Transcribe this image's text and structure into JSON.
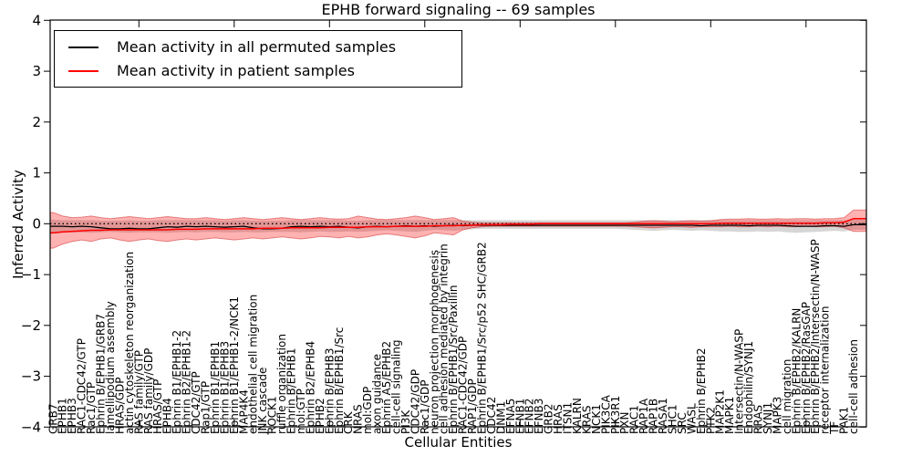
{
  "chart_data": {
    "type": "line",
    "title": "EPHB forward signaling -- 69 samples",
    "xlabel": "Cellular Entities",
    "ylabel": "Inferred Activity",
    "ylim": [
      -4,
      4
    ],
    "yticks": [
      -4,
      -3,
      -2,
      -1,
      0,
      1,
      2,
      3,
      4
    ],
    "xtick_indices": [
      9,
      19,
      29,
      39,
      49,
      59,
      69,
      79
    ],
    "grid": false,
    "legend_position": "upper left",
    "zero_line": {
      "y": 0,
      "style": "dotted",
      "color": "#000000"
    },
    "categories": [
      "GRB7",
      "EPHB1",
      "EPHB3",
      "RAC1-CDC42/GTP",
      "Rac1/GTP",
      "Ephrin B/EPHB1/GRB7",
      "lamellipodium assembly",
      "HRAS/GDP",
      "actin cytoskeleton reorganization",
      "RAS family/GTP",
      "RAS family/GDP",
      "HRAS/GTP",
      "EPHB4",
      "Ephrin B1/EPHB1-2",
      "Ephrin B2/EPHB1-2",
      "CDC42/GTP",
      "Rap1/GTP",
      "Ephrin B1/EPHB1",
      "Ephrin B1/EPHB3",
      "Ephrin B1/EPHB1-2/NCK1",
      "MAP4K4",
      "endothelial cell migration",
      "JNK cascade",
      "ROCK1",
      "ruffle organization",
      "Ephrin B/EPHB1",
      "mol:GTP",
      "Ephrin B2/EPHB4",
      "EPHB2",
      "Ephrin B/EPHB3",
      "Ephrin B/EPHB1/Src",
      "CRK",
      "NRAS",
      "mol:GDP",
      "axon guidance",
      "Ephrin A5/EPHB2",
      "cell-cell signaling",
      "PI3K",
      "CDC42/GDP",
      "Rac1/GDP",
      "neuron projection morphogenesis",
      "cell adhesion mediated by integrin",
      "Ephrin B/EPHB1/Src/Paxillin",
      "RAC1-CDC42/GDP",
      "RAP1/GDP",
      "Ephrin B/EPHB1/Src/p52 SHC/GRB2",
      "CDC42",
      "DNM1",
      "EFNA5",
      "EFNB1",
      "EFNB2",
      "EFNB3",
      "GRB2",
      "HRAS",
      "ITSN1",
      "KALRN",
      "KRAS",
      "NCK1",
      "PIK3CA",
      "PIK3R1",
      "PXN",
      "RAC1",
      "RAP1A",
      "RAP1B",
      "RASA1",
      "SHC1",
      "SRC",
      "WASL",
      "Ephrin B/EPHB2",
      "PTK2",
      "MAP2K1",
      "MAPK1",
      "Intersectin/N-WASP",
      "Endophilin/SYNJ1",
      "RRAS",
      "SYNJ1",
      "MAPK3",
      "cell migration",
      "Ephrin B/EPHB2/KALRN",
      "Ephrin B/EPHB2/RasGAP",
      "Ephrin B/EPHB2/Intersectin/N-WASP",
      "receptor internalization",
      "TF",
      "PAK1",
      "cell-cell adhesion"
    ],
    "series": [
      {
        "name": "Mean activity in all permuted samples",
        "color": "#000000",
        "band_color": "rgba(0,0,0,0.16)",
        "band_edge_color": "rgba(0,0,0,0.0)",
        "values": [
          -0.05,
          -0.05,
          -0.06,
          -0.05,
          -0.06,
          -0.08,
          -0.1,
          -0.1,
          -0.09,
          -0.1,
          -0.1,
          -0.08,
          -0.06,
          -0.07,
          -0.05,
          -0.06,
          -0.05,
          -0.06,
          -0.07,
          -0.06,
          -0.05,
          -0.08,
          -0.1,
          -0.1,
          -0.09,
          -0.06,
          -0.05,
          -0.06,
          -0.05,
          -0.06,
          -0.05,
          -0.07,
          -0.08,
          -0.06,
          -0.05,
          -0.06,
          -0.05,
          -0.04,
          -0.05,
          -0.04,
          -0.05,
          -0.04,
          -0.03,
          -0.04,
          -0.03,
          -0.03,
          -0.03,
          -0.03,
          -0.03,
          -0.03,
          -0.03,
          -0.03,
          -0.03,
          -0.03,
          -0.03,
          -0.03,
          -0.03,
          -0.03,
          -0.03,
          -0.03,
          -0.03,
          -0.03,
          -0.03,
          -0.03,
          -0.03,
          -0.03,
          -0.03,
          -0.03,
          -0.04,
          -0.03,
          -0.03,
          -0.03,
          -0.03,
          -0.04,
          -0.03,
          -0.03,
          -0.03,
          -0.04,
          -0.05,
          -0.05,
          -0.05,
          -0.04,
          -0.04,
          -0.05,
          -0.02
        ],
        "band_upper": [
          0.08,
          0.07,
          0.07,
          0.07,
          0.07,
          0.06,
          0.06,
          0.06,
          0.07,
          0.06,
          0.06,
          0.07,
          0.07,
          0.07,
          0.07,
          0.07,
          0.07,
          0.07,
          0.06,
          0.07,
          0.07,
          0.06,
          0.06,
          0.06,
          0.06,
          0.07,
          0.07,
          0.07,
          0.07,
          0.07,
          0.07,
          0.06,
          0.06,
          0.07,
          0.07,
          0.07,
          0.07,
          0.07,
          0.07,
          0.07,
          0.07,
          0.07,
          0.07,
          0.07,
          0.07,
          0.07,
          0.07,
          0.07,
          0.07,
          0.07,
          0.07,
          0.07,
          0.07,
          0.07,
          0.07,
          0.07,
          0.07,
          0.07,
          0.07,
          0.07,
          0.07,
          0.07,
          0.07,
          0.07,
          0.07,
          0.07,
          0.07,
          0.07,
          0.07,
          0.07,
          0.07,
          0.07,
          0.07,
          0.07,
          0.07,
          0.07,
          0.07,
          0.07,
          0.07,
          0.07,
          0.07,
          0.07,
          0.07,
          0.07,
          0.08
        ],
        "band_lower": [
          -0.2,
          -0.18,
          -0.17,
          -0.17,
          -0.18,
          -0.17,
          -0.16,
          -0.17,
          -0.18,
          -0.17,
          -0.17,
          -0.17,
          -0.18,
          -0.17,
          -0.16,
          -0.17,
          -0.16,
          -0.16,
          -0.17,
          -0.17,
          -0.16,
          -0.17,
          -0.17,
          -0.16,
          -0.16,
          -0.16,
          -0.17,
          -0.16,
          -0.15,
          -0.16,
          -0.16,
          -0.15,
          -0.16,
          -0.15,
          -0.14,
          -0.13,
          -0.14,
          -0.15,
          -0.16,
          -0.14,
          -0.12,
          -0.13,
          -0.14,
          -0.12,
          -0.11,
          -0.1,
          -0.1,
          -0.1,
          -0.1,
          -0.1,
          -0.1,
          -0.1,
          -0.1,
          -0.1,
          -0.1,
          -0.1,
          -0.1,
          -0.1,
          -0.1,
          -0.1,
          -0.11,
          -0.12,
          -0.13,
          -0.14,
          -0.13,
          -0.12,
          -0.13,
          -0.14,
          -0.13,
          -0.14,
          -0.15,
          -0.15,
          -0.16,
          -0.16,
          -0.15,
          -0.16,
          -0.15,
          -0.17,
          -0.18,
          -0.17,
          -0.16,
          -0.15,
          -0.14,
          -0.15,
          -0.12
        ]
      },
      {
        "name": "Mean activity in patient samples",
        "color": "#ff0000",
        "band_color": "rgba(255,0,0,0.30)",
        "band_edge_color": "rgba(205,35,35,0.5)",
        "values": [
          -0.18,
          -0.16,
          -0.15,
          -0.14,
          -0.13,
          -0.13,
          -0.12,
          -0.12,
          -0.12,
          -0.12,
          -0.12,
          -0.12,
          -0.12,
          -0.11,
          -0.11,
          -0.11,
          -0.1,
          -0.1,
          -0.1,
          -0.1,
          -0.1,
          -0.1,
          -0.09,
          -0.09,
          -0.09,
          -0.08,
          -0.08,
          -0.08,
          -0.08,
          -0.07,
          -0.07,
          -0.07,
          -0.07,
          -0.06,
          -0.06,
          -0.06,
          -0.05,
          -0.05,
          -0.05,
          -0.05,
          -0.04,
          -0.04,
          -0.04,
          -0.03,
          -0.03,
          -0.02,
          -0.02,
          -0.02,
          -0.01,
          -0.01,
          -0.01,
          0.0,
          0.0,
          0.0,
          0.0,
          0.0,
          0.0,
          0.0,
          0.0,
          0.0,
          0.0,
          0.0,
          0.0,
          0.0,
          0.0,
          0.0,
          0.0,
          0.0,
          0.0,
          0.0,
          0.01,
          0.01,
          0.01,
          0.01,
          0.01,
          0.01,
          0.01,
          0.01,
          0.01,
          0.01,
          0.01,
          0.02,
          0.02,
          0.03,
          0.1
        ],
        "band_upper": [
          0.22,
          0.15,
          0.12,
          0.13,
          0.15,
          0.12,
          0.1,
          0.12,
          0.14,
          0.12,
          0.1,
          0.12,
          0.14,
          0.12,
          0.1,
          0.1,
          0.12,
          0.1,
          0.08,
          0.1,
          0.12,
          0.1,
          0.08,
          0.1,
          0.12,
          0.1,
          0.08,
          0.1,
          0.12,
          0.1,
          0.09,
          0.1,
          0.15,
          0.12,
          0.09,
          0.08,
          0.1,
          0.12,
          0.15,
          0.12,
          0.08,
          0.1,
          0.12,
          0.05,
          0.03,
          0.02,
          0.02,
          0.02,
          0.02,
          0.02,
          0.02,
          0.02,
          0.02,
          0.02,
          0.02,
          0.02,
          0.02,
          0.02,
          0.02,
          0.02,
          0.02,
          0.03,
          0.05,
          0.06,
          0.05,
          0.04,
          0.05,
          0.06,
          0.05,
          0.06,
          0.08,
          0.09,
          0.09,
          0.1,
          0.09,
          0.09,
          0.1,
          0.09,
          0.1,
          0.1,
          0.09,
          0.1,
          0.1,
          0.12,
          0.27
        ],
        "band_lower": [
          -0.48,
          -0.4,
          -0.35,
          -0.32,
          -0.35,
          -0.3,
          -0.28,
          -0.32,
          -0.35,
          -0.32,
          -0.3,
          -0.33,
          -0.35,
          -0.32,
          -0.3,
          -0.32,
          -0.3,
          -0.28,
          -0.3,
          -0.32,
          -0.3,
          -0.28,
          -0.3,
          -0.28,
          -0.26,
          -0.28,
          -0.3,
          -0.28,
          -0.25,
          -0.26,
          -0.28,
          -0.25,
          -0.28,
          -0.26,
          -0.22,
          -0.2,
          -0.22,
          -0.25,
          -0.28,
          -0.24,
          -0.18,
          -0.2,
          -0.22,
          -0.12,
          -0.08,
          -0.06,
          -0.05,
          -0.05,
          -0.05,
          -0.05,
          -0.05,
          -0.05,
          -0.05,
          -0.05,
          -0.05,
          -0.05,
          -0.05,
          -0.05,
          -0.05,
          -0.05,
          -0.05,
          -0.06,
          -0.07,
          -0.08,
          -0.07,
          -0.06,
          -0.06,
          -0.07,
          -0.06,
          -0.06,
          -0.06,
          -0.05,
          -0.06,
          -0.06,
          -0.05,
          -0.06,
          -0.05,
          -0.06,
          -0.06,
          -0.05,
          -0.06,
          -0.06,
          -0.05,
          -0.08,
          -0.15
        ]
      }
    ]
  }
}
